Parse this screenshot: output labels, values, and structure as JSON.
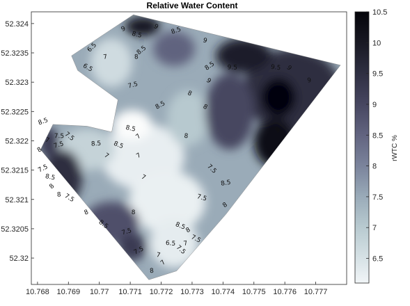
{
  "chart_data": {
    "type": "contour",
    "title": "Relative Water Content",
    "xlabel": "",
    "ylabel": "",
    "xlim": [
      10.7678,
      10.778
    ],
    "ylim": [
      52.31955,
      52.3242
    ],
    "x_ticks": [
      "10.768",
      "10.769",
      "10.77",
      "10.771",
      "10.772",
      "10.773",
      "10.774",
      "10.775",
      "10.776",
      "10.777"
    ],
    "y_ticks": [
      "52.324",
      "52.3235",
      "52.323",
      "52.3225",
      "52.322",
      "52.3215",
      "52.321",
      "52.3205",
      "52.32"
    ],
    "grid": false,
    "colorbar": {
      "label": "rWTC %",
      "range": [
        6.1,
        10.5
      ],
      "ticks": [
        "6.5",
        "7",
        "7.5",
        "8",
        "8.5",
        "9",
        "9.5",
        "10",
        "10.5"
      ]
    },
    "contour_levels": [
      6.5,
      7,
      7.5,
      8,
      8.5,
      9,
      9.5,
      10
    ],
    "boundary": [
      [
        10.7711,
        52.32415
      ],
      [
        10.7778,
        52.32329
      ],
      [
        10.7741,
        52.32075
      ],
      [
        10.7725,
        52.31978
      ],
      [
        10.7716,
        52.31963
      ],
      [
        10.7681,
        52.32185
      ],
      [
        10.7685,
        52.32228
      ],
      [
        10.7696,
        52.32225
      ],
      [
        10.7704,
        52.32215
      ],
      [
        10.7706,
        52.3227
      ],
      [
        10.7693,
        52.3232
      ],
      [
        10.7691,
        52.32345
      ]
    ],
    "contour_labels": [
      {
        "x": 10.7698,
        "y": 52.32357,
        "text": "6.5"
      },
      {
        "x": 10.7702,
        "y": 52.3234,
        "text": "7"
      },
      {
        "x": 10.7696,
        "y": 52.32322,
        "text": "6.5"
      },
      {
        "x": 10.7708,
        "y": 52.32388,
        "text": "9"
      },
      {
        "x": 10.7712,
        "y": 52.32378,
        "text": "8.5"
      },
      {
        "x": 10.7714,
        "y": 52.32352,
        "text": "8.5"
      },
      {
        "x": 10.7712,
        "y": 52.3234,
        "text": "8"
      },
      {
        "x": 10.7718,
        "y": 52.32392,
        "text": "9"
      },
      {
        "x": 10.7725,
        "y": 52.32385,
        "text": "8.5"
      },
      {
        "x": 10.7734,
        "y": 52.32368,
        "text": "9"
      },
      {
        "x": 10.7736,
        "y": 52.32325,
        "text": "8.5"
      },
      {
        "x": 10.7743,
        "y": 52.32322,
        "text": "9.5"
      },
      {
        "x": 10.7735,
        "y": 52.323,
        "text": "9"
      },
      {
        "x": 10.7711,
        "y": 52.32292,
        "text": "7.5"
      },
      {
        "x": 10.7729,
        "y": 52.32278,
        "text": "8"
      },
      {
        "x": 10.772,
        "y": 52.32258,
        "text": "8.5"
      },
      {
        "x": 10.7757,
        "y": 52.32322,
        "text": "9.5"
      },
      {
        "x": 10.7761,
        "y": 52.32322,
        "text": "9"
      },
      {
        "x": 10.7768,
        "y": 52.323,
        "text": "9"
      },
      {
        "x": 10.7734,
        "y": 52.32255,
        "text": "8"
      },
      {
        "x": 10.7758,
        "y": 52.32215,
        "text": "9"
      },
      {
        "x": 10.771,
        "y": 52.32218,
        "text": "8.5"
      },
      {
        "x": 10.7713,
        "y": 52.32205,
        "text": "7"
      },
      {
        "x": 10.7699,
        "y": 52.32192,
        "text": "8.5"
      },
      {
        "x": 10.7702,
        "y": 52.32172,
        "text": "7"
      },
      {
        "x": 10.7682,
        "y": 52.3223,
        "text": "8.5"
      },
      {
        "x": 10.7683,
        "y": 52.32198,
        "text": "7"
      },
      {
        "x": 10.7681,
        "y": 52.32182,
        "text": "8"
      },
      {
        "x": 10.7687,
        "y": 52.32205,
        "text": "7.5"
      },
      {
        "x": 10.769,
        "y": 52.32205,
        "text": "7.5"
      },
      {
        "x": 10.7687,
        "y": 52.3219,
        "text": "7.5"
      },
      {
        "x": 10.7706,
        "y": 52.3219,
        "text": "8.5"
      },
      {
        "x": 10.7713,
        "y": 52.32172,
        "text": "7"
      },
      {
        "x": 10.7728,
        "y": 52.32205,
        "text": "8"
      },
      {
        "x": 10.7736,
        "y": 52.3215,
        "text": "7.5"
      },
      {
        "x": 10.7741,
        "y": 52.32125,
        "text": "8.5"
      },
      {
        "x": 10.7714,
        "y": 52.32135,
        "text": "7"
      },
      {
        "x": 10.7682,
        "y": 52.3215,
        "text": "7.5"
      },
      {
        "x": 10.7684,
        "y": 52.32135,
        "text": "8.5"
      },
      {
        "x": 10.7685,
        "y": 52.3212,
        "text": "8"
      },
      {
        "x": 10.7687,
        "y": 52.32105,
        "text": "8"
      },
      {
        "x": 10.769,
        "y": 52.321,
        "text": "7.5"
      },
      {
        "x": 10.7696,
        "y": 52.32075,
        "text": "8"
      },
      {
        "x": 10.7733,
        "y": 52.321,
        "text": "7.5"
      },
      {
        "x": 10.7741,
        "y": 52.32088,
        "text": "8"
      },
      {
        "x": 10.7711,
        "y": 52.32075,
        "text": "8"
      },
      {
        "x": 10.7701,
        "y": 52.32055,
        "text": "8.5"
      },
      {
        "x": 10.7709,
        "y": 52.32042,
        "text": "7.5"
      },
      {
        "x": 10.7726,
        "y": 52.32052,
        "text": "8.5"
      },
      {
        "x": 10.7729,
        "y": 52.32045,
        "text": "8"
      },
      {
        "x": 10.7723,
        "y": 52.32022,
        "text": "6.5"
      },
      {
        "x": 10.7726,
        "y": 52.32012,
        "text": "7.5"
      },
      {
        "x": 10.7728,
        "y": 52.32022,
        "text": "7"
      },
      {
        "x": 10.7731,
        "y": 52.3203,
        "text": "7.5"
      },
      {
        "x": 10.7713,
        "y": 52.3201,
        "text": "7.5"
      },
      {
        "x": 10.7719,
        "y": 52.32002,
        "text": "7"
      },
      {
        "x": 10.7721,
        "y": 52.3199,
        "text": "7"
      },
      {
        "x": 10.7717,
        "y": 52.31975,
        "text": "8"
      }
    ]
  }
}
